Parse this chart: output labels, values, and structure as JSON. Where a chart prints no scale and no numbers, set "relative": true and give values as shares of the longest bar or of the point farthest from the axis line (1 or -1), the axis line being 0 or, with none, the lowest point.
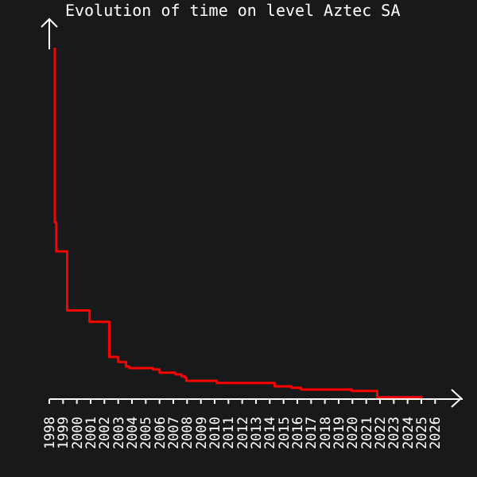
{
  "chart_data": {
    "type": "step",
    "title": "Evolution of time on level Aztec SA",
    "relative": true,
    "x": [
      1998.35,
      1998.4,
      1998.51,
      1999.3,
      2000.92,
      2002.35,
      2003.0,
      2003.57,
      2003.8,
      2005.53,
      2006.0,
      2007.15,
      2007.6,
      2007.84,
      2007.95,
      2010.15,
      2014.35,
      2015.57,
      2016.27,
      2019.96,
      2021.8,
      2025.08
    ],
    "series": [
      {
        "color": "#ff0000",
        "values": [
          1.0,
          0.503,
          0.42,
          0.252,
          0.22,
          0.12,
          0.106,
          0.093,
          0.088,
          0.084,
          0.075,
          0.07,
          0.065,
          0.061,
          0.052,
          0.046,
          0.036,
          0.032,
          0.027,
          0.023,
          0.005,
          0.005
        ]
      }
    ],
    "xlim": [
      1998,
      2028
    ],
    "xticks": [
      1998,
      1999,
      2000,
      2001,
      2002,
      2003,
      2004,
      2005,
      2006,
      2007,
      2008,
      2009,
      2010,
      2011,
      2012,
      2013,
      2014,
      2015,
      2016,
      2017,
      2018,
      2019,
      2020,
      2021,
      2022,
      2023,
      2024,
      2025,
      2026
    ],
    "grid": false,
    "legend": false
  }
}
